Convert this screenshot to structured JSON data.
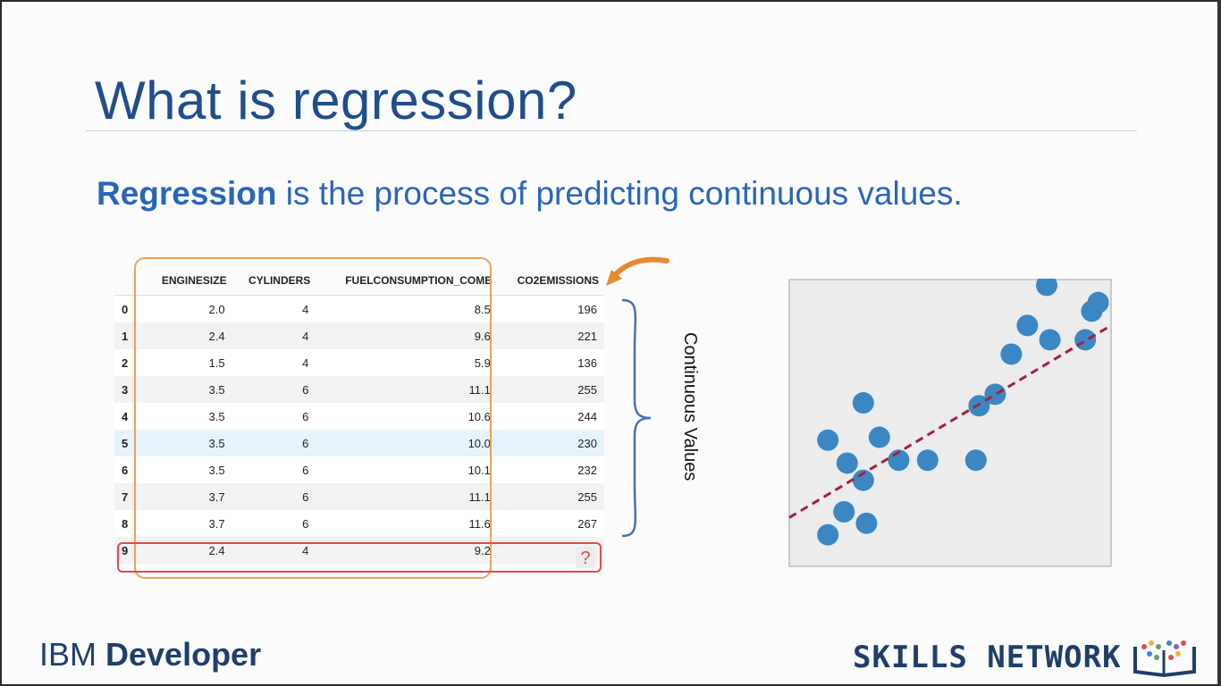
{
  "slide": {
    "title": "What is regression?",
    "subtitle_bold": "Regression",
    "subtitle_rest": " is the process of predicting continuous values."
  },
  "table": {
    "headers": [
      "",
      "ENGINESIZE",
      "CYLINDERS",
      "FUELCONSUMPTION_COMB",
      "CO2EMISSIONS"
    ],
    "rows": [
      {
        "idx": "0",
        "engine": "2.0",
        "cyl": "4",
        "fuel": "8.5",
        "co2": "196"
      },
      {
        "idx": "1",
        "engine": "2.4",
        "cyl": "4",
        "fuel": "9.6",
        "co2": "221"
      },
      {
        "idx": "2",
        "engine": "1.5",
        "cyl": "4",
        "fuel": "5.9",
        "co2": "136"
      },
      {
        "idx": "3",
        "engine": "3.5",
        "cyl": "6",
        "fuel": "11.1",
        "co2": "255"
      },
      {
        "idx": "4",
        "engine": "3.5",
        "cyl": "6",
        "fuel": "10.6",
        "co2": "244"
      },
      {
        "idx": "5",
        "engine": "3.5",
        "cyl": "6",
        "fuel": "10.0",
        "co2": "230"
      },
      {
        "idx": "6",
        "engine": "3.5",
        "cyl": "6",
        "fuel": "10.1",
        "co2": "232"
      },
      {
        "idx": "7",
        "engine": "3.7",
        "cyl": "6",
        "fuel": "11.1",
        "co2": "255"
      },
      {
        "idx": "8",
        "engine": "3.7",
        "cyl": "6",
        "fuel": "11.6",
        "co2": "267"
      },
      {
        "idx": "9",
        "engine": "2.4",
        "cyl": "4",
        "fuel": "9.2",
        "co2": ""
      }
    ],
    "unknown_marker": "?"
  },
  "annotation": {
    "brace_label": "Continuous Values"
  },
  "footer": {
    "ibm_light": "IBM ",
    "ibm_bold": "Developer",
    "skills": "SKILLS NETWORK"
  },
  "colors": {
    "title": "#1f4e8c",
    "accent_blue": "#2a66b8",
    "orange": "#e9a25a",
    "red": "#e24a4a",
    "dot": "#3a87c4",
    "fit_line": "#a3213a"
  },
  "chart_data": {
    "type": "scatter",
    "points": [
      [
        0.12,
        0.11
      ],
      [
        0.17,
        0.19
      ],
      [
        0.24,
        0.15
      ],
      [
        0.12,
        0.44
      ],
      [
        0.18,
        0.36
      ],
      [
        0.23,
        0.3
      ],
      [
        0.23,
        0.57
      ],
      [
        0.28,
        0.45
      ],
      [
        0.34,
        0.37
      ],
      [
        0.43,
        0.37
      ],
      [
        0.58,
        0.37
      ],
      [
        0.59,
        0.56
      ],
      [
        0.64,
        0.6
      ],
      [
        0.69,
        0.74
      ],
      [
        0.74,
        0.84
      ],
      [
        0.81,
        0.79
      ],
      [
        0.8,
        0.98
      ],
      [
        0.92,
        0.79
      ],
      [
        0.94,
        0.89
      ],
      [
        0.96,
        0.92
      ]
    ],
    "fit_line": [
      [
        0.0,
        0.17
      ],
      [
        1.0,
        0.84
      ]
    ],
    "fit_line_style": "dashed",
    "xlim": [
      0,
      1
    ],
    "ylim": [
      0,
      1
    ],
    "grid": false
  }
}
